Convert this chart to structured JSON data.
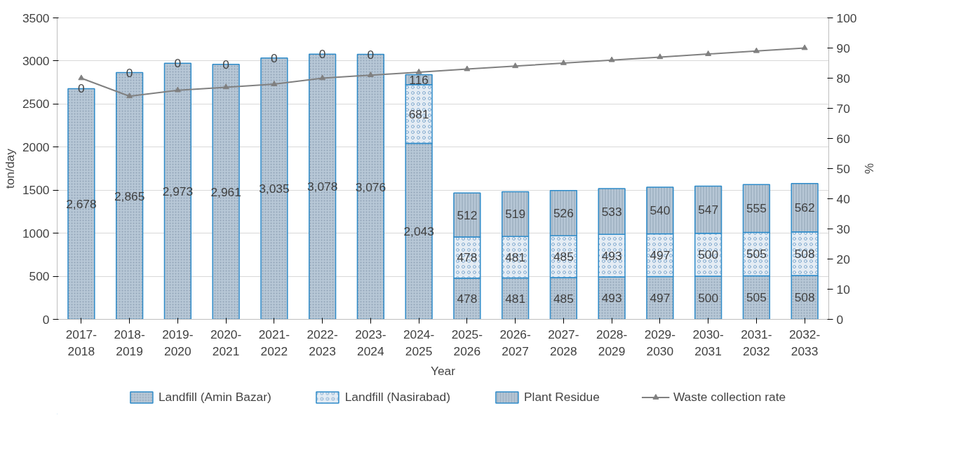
{
  "chart_data": {
    "type": "bar",
    "stacked": true,
    "xlabel": "Year",
    "ylabel": "ton/day",
    "y2label": "%",
    "categories": [
      "2017-2018",
      "2018-2019",
      "2019-2020",
      "2020-2021",
      "2021-2022",
      "2022-2023",
      "2023-2024",
      "2024-2025",
      "2025-2026",
      "2026-2027",
      "2027-2028",
      "2028-2029",
      "2029-2030",
      "2030-2031",
      "2031-2032",
      "2032-2033"
    ],
    "series": [
      {
        "name": "Landfill (Amin Bazar)",
        "color": "#b7c7d6",
        "values": [
          2678,
          2865,
          2973,
          2961,
          3035,
          3078,
          3076,
          2043,
          478,
          481,
          485,
          493,
          497,
          500,
          505,
          508
        ],
        "value_labels": [
          "2,678",
          "2,865",
          "2,973",
          "2,961",
          "3,035",
          "3,078",
          "3,076",
          "2,043",
          "478",
          "481",
          "485",
          "493",
          "497",
          "500",
          "505",
          "508"
        ]
      },
      {
        "name": "Landfill (Nasirabad)",
        "color": "#e4ecf4",
        "values": [
          0,
          0,
          0,
          0,
          0,
          0,
          0,
          681,
          478,
          481,
          485,
          493,
          497,
          500,
          505,
          508
        ],
        "value_labels": [
          null,
          null,
          null,
          null,
          null,
          null,
          null,
          "681",
          "478",
          "481",
          "485",
          "493",
          "497",
          "500",
          "505",
          "508"
        ]
      },
      {
        "name": "Plant Residue",
        "color": "#b7c7d6",
        "values": [
          0,
          0,
          0,
          0,
          0,
          0,
          0,
          116,
          512,
          519,
          526,
          533,
          540,
          547,
          555,
          562
        ],
        "value_labels": [
          "0",
          "0",
          "0",
          "0",
          "0",
          "0",
          "0",
          "116",
          "512",
          "519",
          "526",
          "533",
          "540",
          "547",
          "555",
          "562"
        ]
      },
      {
        "name": "Waste collection rate",
        "type": "line",
        "axis": "y2",
        "color": "#808080",
        "marker": "triangle",
        "values": [
          80,
          74,
          76,
          77,
          78,
          80,
          81,
          82,
          83,
          84,
          85,
          86,
          87,
          88,
          89,
          90
        ]
      }
    ],
    "ylim": [
      0,
      3500
    ],
    "yticks": [
      0,
      500,
      1000,
      1500,
      2000,
      2500,
      3000,
      3500
    ],
    "y2lim": [
      0,
      100
    ],
    "y2ticks": [
      0,
      10,
      20,
      30,
      40,
      50,
      60,
      70,
      80,
      90,
      100
    ],
    "grid": "y",
    "legend": "bottom"
  }
}
